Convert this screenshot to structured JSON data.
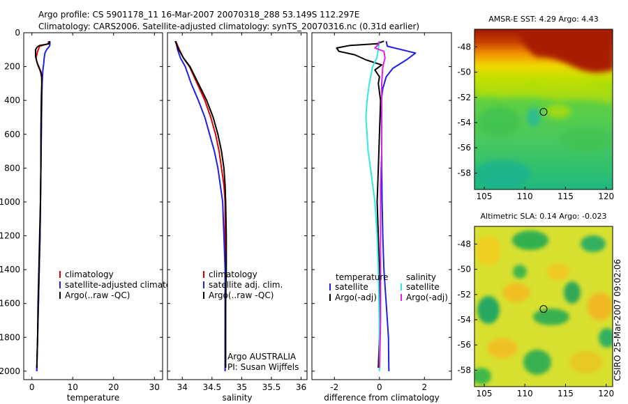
{
  "title": {
    "line1": "Argo profile: CS 5901178_11 16-Mar-2007 20070318_288 53.149S 112.297E",
    "line2": "Climatology: CARS2006. Satellite-adjusted climatology: synTS_20070316.nc (0.31d earlier)"
  },
  "credit": "CSIRO 25-Mar-2007 09:02:06",
  "colors": {
    "climatology": "#e00000",
    "satellite": "#1e1ee8",
    "argo": "#000000",
    "cyan": "#30e8e8",
    "magenta": "#e020e0"
  },
  "chart_data": [
    {
      "type": "line",
      "id": "temperature",
      "xlabel": "temperature",
      "ylabel": "",
      "xlim": [
        -2,
        32
      ],
      "ylim": [
        2050,
        0
      ],
      "xticks": [
        0,
        10,
        20,
        30
      ],
      "yticks": [
        0,
        200,
        400,
        600,
        800,
        1000,
        1200,
        1400,
        1600,
        1800,
        2000
      ],
      "legend": [
        "climatology",
        "satellite-adjusted climatology",
        "Argo(..raw -QC)"
      ],
      "series": [
        {
          "name": "climatology",
          "color": "climatology",
          "points": [
            [
              4.1,
              50
            ],
            [
              4.0,
              65
            ],
            [
              1.9,
              80
            ],
            [
              1.4,
              110
            ],
            [
              1.0,
              150
            ],
            [
              1.3,
              180
            ],
            [
              1.7,
              200
            ],
            [
              2.2,
              240
            ],
            [
              2.4,
              270
            ],
            [
              2.5,
              300
            ],
            [
              2.4,
              400
            ],
            [
              2.3,
              600
            ],
            [
              2.2,
              800
            ],
            [
              2.1,
              1000
            ],
            [
              2.0,
              1200
            ],
            [
              1.8,
              1400
            ],
            [
              1.6,
              1600
            ],
            [
              1.4,
              1800
            ],
            [
              1.2,
              2000
            ]
          ]
        },
        {
          "name": "satellite-adjusted climatology",
          "color": "satellite",
          "points": [
            [
              4.4,
              50
            ],
            [
              4.4,
              70
            ],
            [
              4.3,
              80
            ],
            [
              3.6,
              100
            ],
            [
              3.2,
              120
            ],
            [
              3.0,
              150
            ],
            [
              2.9,
              180
            ],
            [
              2.7,
              220
            ],
            [
              2.6,
              260
            ],
            [
              2.5,
              300
            ],
            [
              2.4,
              400
            ],
            [
              2.3,
              600
            ],
            [
              2.2,
              800
            ],
            [
              2.1,
              1000
            ],
            [
              2.0,
              1200
            ],
            [
              1.8,
              1400
            ],
            [
              1.6,
              1600
            ],
            [
              1.4,
              1800
            ],
            [
              1.2,
              2000
            ]
          ]
        },
        {
          "name": "Argo(..raw -QC)",
          "color": "argo",
          "points": [
            [
              4.3,
              50
            ],
            [
              4.2,
              65
            ],
            [
              3.2,
              70
            ],
            [
              1.9,
              75
            ],
            [
              1.3,
              85
            ],
            [
              0.9,
              100
            ],
            [
              0.9,
              140
            ],
            [
              1.2,
              170
            ],
            [
              1.6,
              200
            ],
            [
              2.2,
              230
            ],
            [
              2.4,
              260
            ],
            [
              2.4,
              300
            ],
            [
              2.3,
              400
            ],
            [
              2.2,
              600
            ],
            [
              2.2,
              800
            ],
            [
              2.1,
              1000
            ],
            [
              1.9,
              1200
            ],
            [
              1.7,
              1400
            ],
            [
              1.5,
              1600
            ],
            [
              1.4,
              1800
            ],
            [
              1.2,
              1980
            ]
          ]
        }
      ]
    },
    {
      "type": "line",
      "id": "salinity",
      "xlabel": "salinity",
      "ylabel": "",
      "xlim": [
        33.75,
        36.1
      ],
      "ylim": [
        2050,
        0
      ],
      "xticks": [
        34,
        34.5,
        35,
        35.5,
        36
      ],
      "xticklabels": [
        "34",
        "34.5",
        "35",
        "35.5",
        "36"
      ],
      "yticks": [
        0,
        200,
        400,
        600,
        800,
        1000,
        1200,
        1400,
        1600,
        1800,
        2000
      ],
      "legend": [
        "climatology",
        "satellite adj. clim.",
        "Argo(..raw -QC)"
      ],
      "annotation": [
        "Argo AUSTRALIA",
        "PI: Susan Wijffels"
      ],
      "series": [
        {
          "name": "climatology",
          "color": "climatology",
          "points": [
            [
              33.89,
              50
            ],
            [
              33.95,
              100
            ],
            [
              34.02,
              150
            ],
            [
              34.12,
              200
            ],
            [
              34.25,
              300
            ],
            [
              34.38,
              400
            ],
            [
              34.48,
              500
            ],
            [
              34.56,
              600
            ],
            [
              34.62,
              700
            ],
            [
              34.66,
              800
            ],
            [
              34.7,
              900
            ],
            [
              34.72,
              1000
            ],
            [
              34.72,
              1200
            ],
            [
              34.73,
              1400
            ],
            [
              34.73,
              1600
            ],
            [
              34.72,
              1800
            ],
            [
              34.72,
              2000
            ]
          ]
        },
        {
          "name": "satellite adj. clim.",
          "color": "satellite",
          "points": [
            [
              33.89,
              50
            ],
            [
              33.92,
              100
            ],
            [
              33.97,
              150
            ],
            [
              34.05,
              200
            ],
            [
              34.15,
              300
            ],
            [
              34.27,
              400
            ],
            [
              34.38,
              500
            ],
            [
              34.46,
              600
            ],
            [
              34.54,
              700
            ],
            [
              34.6,
              800
            ],
            [
              34.64,
              900
            ],
            [
              34.68,
              1000
            ],
            [
              34.7,
              1200
            ],
            [
              34.72,
              1400
            ],
            [
              34.72,
              1600
            ],
            [
              34.72,
              1800
            ],
            [
              34.72,
              2000
            ]
          ]
        },
        {
          "name": "Argo(..raw -QC)",
          "color": "argo",
          "points": [
            [
              33.88,
              50
            ],
            [
              33.94,
              100
            ],
            [
              34.02,
              150
            ],
            [
              34.13,
              200
            ],
            [
              34.27,
              300
            ],
            [
              34.41,
              400
            ],
            [
              34.52,
              500
            ],
            [
              34.6,
              600
            ],
            [
              34.66,
              700
            ],
            [
              34.7,
              800
            ],
            [
              34.72,
              900
            ],
            [
              34.73,
              1000
            ],
            [
              34.74,
              1200
            ],
            [
              34.74,
              1400
            ],
            [
              34.73,
              1600
            ],
            [
              34.73,
              1800
            ],
            [
              34.73,
              1980
            ]
          ]
        }
      ]
    },
    {
      "type": "line",
      "id": "difference",
      "xlabel": "difference from climatology",
      "ylabel": "",
      "xlim": [
        -3,
        3.2
      ],
      "ylim": [
        2050,
        0
      ],
      "xticks": [
        -2,
        0,
        2
      ],
      "yticks": [
        0,
        200,
        400,
        600,
        800,
        1000,
        1200,
        1400,
        1600,
        1800,
        2000
      ],
      "legend_temperature": {
        "title": "temperature",
        "entries": [
          "satellite",
          "Argo(-adj)"
        ]
      },
      "legend_salinity": {
        "title": "salinity",
        "entries": [
          "satellite",
          "Argo(-adj)"
        ]
      },
      "series": [
        {
          "name": "temperature satellite",
          "color": "satellite",
          "points": [
            [
              0.3,
              50
            ],
            [
              0.35,
              80
            ],
            [
              1.6,
              120
            ],
            [
              1.2,
              160
            ],
            [
              0.6,
              210
            ],
            [
              0.3,
              260
            ],
            [
              0.15,
              330
            ],
            [
              0.08,
              400
            ],
            [
              0.1,
              600
            ],
            [
              0.1,
              800
            ],
            [
              0.12,
              1000
            ],
            [
              0.15,
              1200
            ],
            [
              0.2,
              1400
            ],
            [
              0.3,
              1600
            ],
            [
              0.4,
              1800
            ],
            [
              0.42,
              2000
            ]
          ]
        },
        {
          "name": "temperature Argo(-adj)",
          "color": "argo",
          "points": [
            [
              0.2,
              50
            ],
            [
              -0.1,
              65
            ],
            [
              -1.3,
              75
            ],
            [
              -1.9,
              90
            ],
            [
              -1.8,
              110
            ],
            [
              -1.1,
              130
            ],
            [
              -0.6,
              160
            ],
            [
              0.1,
              190
            ],
            [
              -0.2,
              220
            ],
            [
              0.0,
              260
            ],
            [
              -0.05,
              300
            ],
            [
              0.05,
              400
            ],
            [
              0.0,
              600
            ],
            [
              -0.05,
              800
            ],
            [
              -0.1,
              1000
            ],
            [
              -0.05,
              1200
            ],
            [
              0.0,
              1400
            ],
            [
              0.0,
              1600
            ],
            [
              0.0,
              1800
            ],
            [
              -0.05,
              1980
            ]
          ]
        },
        {
          "name": "salinity satellite",
          "color": "cyan",
          "points": [
            [
              0.0,
              50
            ],
            [
              -0.05,
              100
            ],
            [
              -0.12,
              150
            ],
            [
              -0.3,
              200
            ],
            [
              -0.45,
              300
            ],
            [
              -0.55,
              400
            ],
            [
              -0.6,
              500
            ],
            [
              -0.55,
              600
            ],
            [
              -0.5,
              700
            ],
            [
              -0.4,
              800
            ],
            [
              -0.3,
              900
            ],
            [
              -0.2,
              1000
            ],
            [
              -0.1,
              1200
            ],
            [
              -0.05,
              1400
            ],
            [
              -0.02,
              1600
            ],
            [
              0.0,
              1800
            ],
            [
              0.0,
              2000
            ]
          ]
        },
        {
          "name": "salinity Argo(-adj)",
          "color": "magenta",
          "points": [
            [
              0.0,
              50
            ],
            [
              -0.05,
              70
            ],
            [
              -0.2,
              90
            ],
            [
              0.2,
              110
            ],
            [
              0.25,
              150
            ],
            [
              0.15,
              200
            ],
            [
              0.1,
              300
            ],
            [
              0.1,
              400
            ],
            [
              0.1,
              500
            ],
            [
              0.1,
              700
            ],
            [
              0.05,
              900
            ],
            [
              0.05,
              1100
            ],
            [
              0.05,
              1300
            ],
            [
              0.05,
              1500
            ],
            [
              0.05,
              1700
            ],
            [
              0.02,
              1900
            ],
            [
              0.0,
              1980
            ]
          ]
        }
      ]
    },
    {
      "type": "heatmap",
      "id": "sst",
      "title": "AMSR-E SST: 4.29 Argo: 4.43",
      "xlim": [
        103.8,
        120.8
      ],
      "ylim": [
        -59.3,
        -46.6
      ],
      "xticks": [
        105,
        110,
        115,
        120
      ],
      "yticks": [
        -48,
        -50,
        -52,
        -54,
        -56,
        -58
      ],
      "marker": {
        "lon": 112.297,
        "lat": -53.149
      }
    },
    {
      "type": "heatmap",
      "id": "sla",
      "title": "Altimetric SLA: 0.14 Argo: -0.023",
      "xlim": [
        103.8,
        120.8
      ],
      "ylim": [
        -59.3,
        -46.6
      ],
      "xticks": [
        105,
        110,
        115,
        120
      ],
      "yticks": [
        -48,
        -50,
        -52,
        -54,
        -56,
        -58
      ],
      "marker": {
        "lon": 112.297,
        "lat": -53.149
      }
    }
  ]
}
